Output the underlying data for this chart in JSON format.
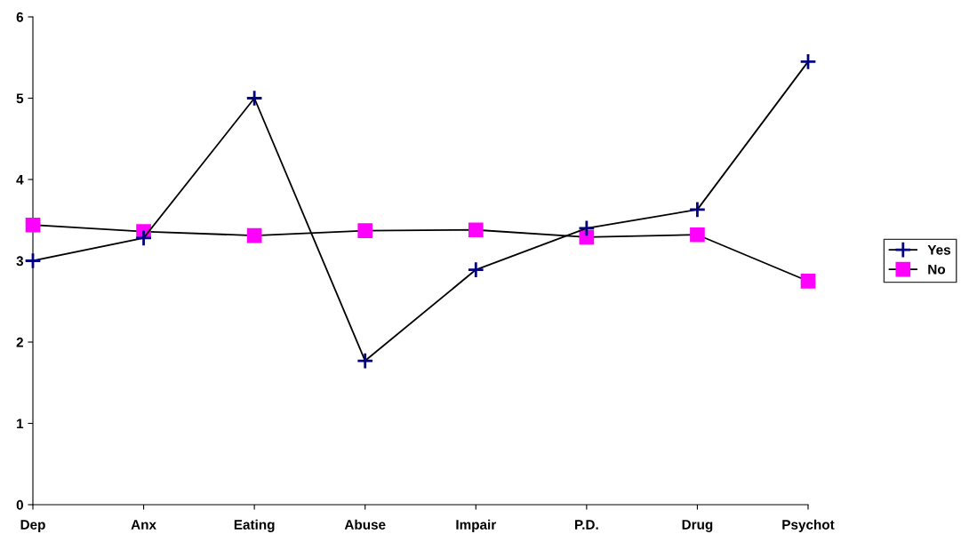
{
  "chart_data": {
    "type": "line",
    "categories": [
      "Dep",
      "Anx",
      "Eating",
      "Abuse",
      "Impair",
      "P.D.",
      "Drug",
      "Psychot"
    ],
    "series": [
      {
        "name": "Yes",
        "color": "#000080",
        "marker": "cross",
        "values": [
          3.0,
          3.28,
          5.0,
          1.77,
          2.89,
          3.4,
          3.63,
          5.45
        ]
      },
      {
        "name": "No",
        "color": "#ff00ff",
        "marker": "square",
        "values": [
          3.44,
          3.36,
          3.31,
          3.37,
          3.38,
          3.29,
          3.32,
          2.75
        ]
      }
    ],
    "ylim": [
      0,
      6
    ],
    "yticks": [
      0,
      1,
      2,
      3,
      4,
      5,
      6
    ],
    "grid": false,
    "legend": "right",
    "line_style": "solid"
  }
}
